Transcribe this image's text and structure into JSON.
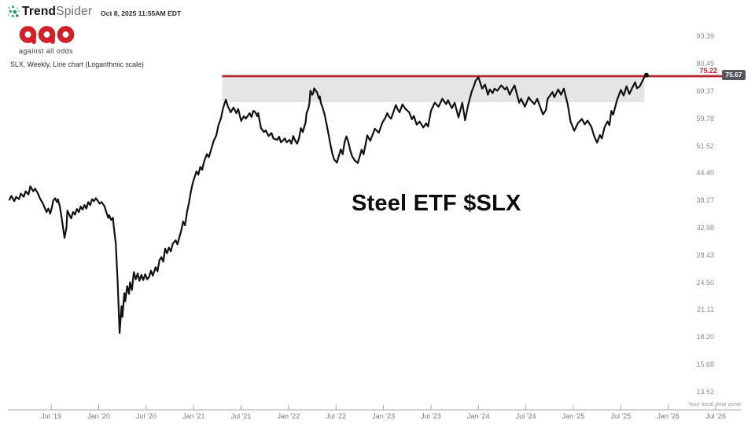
{
  "header": {
    "brand_bold": "Trend",
    "brand_light": "Spider",
    "timestamp": "Oct 8, 2025 11:55AM EDT"
  },
  "logo": {
    "text": "aao",
    "tagline": "against all odds",
    "color": "#d0202a"
  },
  "chart_meta": "SLX, Weekly, Line chart (Logarithmic scale)",
  "footer": {
    "timezone_note": "Your local time zone"
  },
  "colors": {
    "line": "#111111",
    "resistance": "#b5242b",
    "zone_fill": "#e6e5e5",
    "last_price_bg": "#55575c",
    "axis": "#aaaaaa",
    "x_label": "#7b7b7b",
    "y_label": "#8c8c8c",
    "brand_green_dark": "#1f8a60",
    "brand_green_mid": "#2f9e77",
    "brand_green_light": "#7fcfa8"
  },
  "chart_data": {
    "type": "line",
    "symbol": "SLX",
    "timeframe": "Weekly",
    "scale": "log",
    "title": "Steel ETF $SLX",
    "y_ticks": [
      93.39,
      80.49,
      69.37,
      59.78,
      51.52,
      44.4,
      38.27,
      32.98,
      28.43,
      24.5,
      21.11,
      18.2,
      15.68,
      13.52
    ],
    "x_ticks": [
      {
        "t": 2019.5,
        "label": "Jul '19"
      },
      {
        "t": 2020.0,
        "label": "Jan '20"
      },
      {
        "t": 2020.5,
        "label": "Jul '20"
      },
      {
        "t": 2021.0,
        "label": "Jan '21"
      },
      {
        "t": 2021.5,
        "label": "Jul '21"
      },
      {
        "t": 2022.0,
        "label": "Jan '22"
      },
      {
        "t": 2022.5,
        "label": "Jul '22"
      },
      {
        "t": 2023.0,
        "label": "Jan '23"
      },
      {
        "t": 2023.5,
        "label": "Jul '23"
      },
      {
        "t": 2024.0,
        "label": "Jan '24"
      },
      {
        "t": 2024.5,
        "label": "Jul '24"
      },
      {
        "t": 2025.0,
        "label": "Jan '25"
      },
      {
        "t": 2025.5,
        "label": "Jul '25"
      },
      {
        "t": 2026.0,
        "label": "Jan '26"
      },
      {
        "t": 2026.5,
        "label": "Jul '26"
      }
    ],
    "resistance": {
      "level": 75.22,
      "label": "75.22",
      "start": 2021.3
    },
    "last_price": {
      "value": 75.67,
      "label": "75.67"
    },
    "zone": {
      "start": 2021.3,
      "end": 2025.75,
      "top": 75.22,
      "bottom": 65.3
    },
    "series": [
      [
        2019.06,
        38.4
      ],
      [
        2019.08,
        39.2
      ],
      [
        2019.11,
        38.1
      ],
      [
        2019.13,
        39.0
      ],
      [
        2019.16,
        38.5
      ],
      [
        2019.18,
        39.7
      ],
      [
        2019.21,
        39.0
      ],
      [
        2019.23,
        40.2
      ],
      [
        2019.26,
        39.5
      ],
      [
        2019.28,
        41.3
      ],
      [
        2019.31,
        40.2
      ],
      [
        2019.33,
        40.8
      ],
      [
        2019.36,
        39.7
      ],
      [
        2019.38,
        38.7
      ],
      [
        2019.41,
        37.7
      ],
      [
        2019.43,
        36.8
      ],
      [
        2019.45,
        35.9
      ],
      [
        2019.47,
        36.6
      ],
      [
        2019.49,
        35.6
      ],
      [
        2019.51,
        37.1
      ],
      [
        2019.52,
        38.2
      ],
      [
        2019.54,
        38.7
      ],
      [
        2019.56,
        37.9
      ],
      [
        2019.57,
        38.5
      ],
      [
        2019.59,
        37.1
      ],
      [
        2019.61,
        34.8
      ],
      [
        2019.64,
        31.2
      ],
      [
        2019.66,
        33.0
      ],
      [
        2019.67,
        36.2
      ],
      [
        2019.69,
        35.4
      ],
      [
        2019.71,
        34.7
      ],
      [
        2019.73,
        35.9
      ],
      [
        2019.75,
        35.4
      ],
      [
        2019.77,
        36.5
      ],
      [
        2019.79,
        35.9
      ],
      [
        2019.81,
        37.0
      ],
      [
        2019.83,
        36.4
      ],
      [
        2019.85,
        37.3
      ],
      [
        2019.87,
        36.6
      ],
      [
        2019.89,
        37.9
      ],
      [
        2019.91,
        37.3
      ],
      [
        2019.93,
        38.5
      ],
      [
        2019.95,
        38.1
      ],
      [
        2019.97,
        38.7
      ],
      [
        2019.99,
        38.2
      ],
      [
        2020.01,
        37.6
      ],
      [
        2020.03,
        37.9
      ],
      [
        2020.06,
        37.1
      ],
      [
        2020.08,
        35.9
      ],
      [
        2020.1,
        34.8
      ],
      [
        2020.11,
        35.3
      ],
      [
        2020.13,
        34.4
      ],
      [
        2020.15,
        34.8
      ],
      [
        2020.16,
        33.0
      ],
      [
        2020.18,
        30.3
      ],
      [
        2020.2,
        24.5
      ],
      [
        2020.22,
        18.6
      ],
      [
        2020.24,
        21.5
      ],
      [
        2020.25,
        20.3
      ],
      [
        2020.27,
        23.1
      ],
      [
        2020.28,
        22.1
      ],
      [
        2020.3,
        24.0
      ],
      [
        2020.32,
        23.0
      ],
      [
        2020.33,
        24.5
      ],
      [
        2020.35,
        23.5
      ],
      [
        2020.37,
        25.9
      ],
      [
        2020.39,
        24.9
      ],
      [
        2020.41,
        25.7
      ],
      [
        2020.43,
        24.7
      ],
      [
        2020.45,
        25.5
      ],
      [
        2020.47,
        24.8
      ],
      [
        2020.49,
        25.6
      ],
      [
        2020.51,
        24.9
      ],
      [
        2020.53,
        25.2
      ],
      [
        2020.55,
        26.1
      ],
      [
        2020.57,
        25.4
      ],
      [
        2020.6,
        26.6
      ],
      [
        2020.62,
        26.0
      ],
      [
        2020.64,
        27.6
      ],
      [
        2020.66,
        28.1
      ],
      [
        2020.68,
        27.4
      ],
      [
        2020.7,
        29.4
      ],
      [
        2020.72,
        28.7
      ],
      [
        2020.74,
        29.6
      ],
      [
        2020.76,
        29.0
      ],
      [
        2020.78,
        30.2
      ],
      [
        2020.81,
        30.8
      ],
      [
        2020.83,
        30.1
      ],
      [
        2020.85,
        31.3
      ],
      [
        2020.87,
        32.5
      ],
      [
        2020.89,
        34.1
      ],
      [
        2020.91,
        33.4
      ],
      [
        2020.93,
        35.9
      ],
      [
        2020.95,
        37.7
      ],
      [
        2020.97,
        40.0
      ],
      [
        2020.99,
        42.0
      ],
      [
        2021.01,
        43.4
      ],
      [
        2021.03,
        44.8
      ],
      [
        2021.05,
        44.0
      ],
      [
        2021.07,
        45.9
      ],
      [
        2021.09,
        45.2
      ],
      [
        2021.11,
        47.3
      ],
      [
        2021.14,
        49.2
      ],
      [
        2021.16,
        48.4
      ],
      [
        2021.19,
        50.9
      ],
      [
        2021.21,
        52.8
      ],
      [
        2021.24,
        54.6
      ],
      [
        2021.26,
        57.5
      ],
      [
        2021.29,
        60.0
      ],
      [
        2021.31,
        63.2
      ],
      [
        2021.34,
        66.2
      ],
      [
        2021.36,
        63.9
      ],
      [
        2021.39,
        61.8
      ],
      [
        2021.42,
        63.4
      ],
      [
        2021.45,
        61.5
      ],
      [
        2021.47,
        62.9
      ],
      [
        2021.5,
        59.0
      ],
      [
        2021.53,
        60.5
      ],
      [
        2021.55,
        59.7
      ],
      [
        2021.59,
        61.5
      ],
      [
        2021.61,
        60.2
      ],
      [
        2021.63,
        62.3
      ],
      [
        2021.65,
        61.8
      ],
      [
        2021.67,
        60.5
      ],
      [
        2021.68,
        61.5
      ],
      [
        2021.71,
        56.7
      ],
      [
        2021.74,
        55.5
      ],
      [
        2021.76,
        56.0
      ],
      [
        2021.79,
        54.3
      ],
      [
        2021.82,
        55.2
      ],
      [
        2021.84,
        53.6
      ],
      [
        2021.88,
        53.2
      ],
      [
        2021.9,
        54.1
      ],
      [
        2021.92,
        52.5
      ],
      [
        2021.94,
        53.0
      ],
      [
        2021.96,
        53.6
      ],
      [
        2021.98,
        52.5
      ],
      [
        2022.01,
        53.2
      ],
      [
        2022.03,
        52.1
      ],
      [
        2022.05,
        54.3
      ],
      [
        2022.07,
        53.0
      ],
      [
        2022.09,
        52.1
      ],
      [
        2022.11,
        53.6
      ],
      [
        2022.13,
        56.7
      ],
      [
        2022.15,
        55.5
      ],
      [
        2022.18,
        58.5
      ],
      [
        2022.19,
        61.5
      ],
      [
        2022.21,
        63.2
      ],
      [
        2022.22,
        65.1
      ],
      [
        2022.23,
        69.5
      ],
      [
        2022.25,
        68.0
      ],
      [
        2022.26,
        68.6
      ],
      [
        2022.27,
        70.4
      ],
      [
        2022.3,
        68.9
      ],
      [
        2022.32,
        66.6
      ],
      [
        2022.33,
        67.4
      ],
      [
        2022.34,
        65.1
      ],
      [
        2022.36,
        63.2
      ],
      [
        2022.38,
        61.0
      ],
      [
        2022.4,
        58.0
      ],
      [
        2022.42,
        55.0
      ],
      [
        2022.44,
        52.0
      ],
      [
        2022.46,
        49.5
      ],
      [
        2022.48,
        47.8
      ],
      [
        2022.51,
        47.0
      ],
      [
        2022.53,
        48.8
      ],
      [
        2022.55,
        50.5
      ],
      [
        2022.57,
        49.2
      ],
      [
        2022.59,
        52.4
      ],
      [
        2022.61,
        54.2
      ],
      [
        2022.63,
        52.6
      ],
      [
        2022.65,
        50.2
      ],
      [
        2022.67,
        48.6
      ],
      [
        2022.7,
        47.5
      ],
      [
        2022.73,
        46.9
      ],
      [
        2022.77,
        50.4
      ],
      [
        2022.79,
        49.2
      ],
      [
        2022.83,
        54.5
      ],
      [
        2022.86,
        52.9
      ],
      [
        2022.91,
        56.5
      ],
      [
        2022.95,
        55.3
      ],
      [
        2022.99,
        58.5
      ],
      [
        2023.02,
        60.0
      ],
      [
        2023.04,
        61.5
      ],
      [
        2023.06,
        60.3
      ],
      [
        2023.08,
        59.7
      ],
      [
        2023.11,
        62.4
      ],
      [
        2023.13,
        64.3
      ],
      [
        2023.15,
        62.8
      ],
      [
        2023.17,
        61.8
      ],
      [
        2023.2,
        64.5
      ],
      [
        2023.23,
        63.0
      ],
      [
        2023.27,
        61.8
      ],
      [
        2023.3,
        59.5
      ],
      [
        2023.32,
        60.6
      ],
      [
        2023.35,
        57.8
      ],
      [
        2023.38,
        58.8
      ],
      [
        2023.42,
        56.9
      ],
      [
        2023.45,
        58.2
      ],
      [
        2023.47,
        57.2
      ],
      [
        2023.5,
        62.3
      ],
      [
        2023.54,
        65.1
      ],
      [
        2023.58,
        63.7
      ],
      [
        2023.62,
        66.5
      ],
      [
        2023.66,
        64.6
      ],
      [
        2023.68,
        66.0
      ],
      [
        2023.72,
        63.2
      ],
      [
        2023.75,
        65.1
      ],
      [
        2023.79,
        60.1
      ],
      [
        2023.83,
        65.1
      ],
      [
        2023.86,
        59.2
      ],
      [
        2023.89,
        64.0
      ],
      [
        2023.93,
        69.3
      ],
      [
        2023.95,
        71.0
      ],
      [
        2023.97,
        73.4
      ],
      [
        2024.0,
        74.8
      ],
      [
        2024.04,
        70.3
      ],
      [
        2024.07,
        71.9
      ],
      [
        2024.1,
        68.0
      ],
      [
        2024.12,
        70.0
      ],
      [
        2024.15,
        68.6
      ],
      [
        2024.17,
        70.3
      ],
      [
        2024.2,
        69.5
      ],
      [
        2024.24,
        71.6
      ],
      [
        2024.28,
        70.0
      ],
      [
        2024.3,
        70.9
      ],
      [
        2024.33,
        68.0
      ],
      [
        2024.36,
        70.3
      ],
      [
        2024.38,
        71.6
      ],
      [
        2024.43,
        65.1
      ],
      [
        2024.45,
        66.5
      ],
      [
        2024.49,
        63.7
      ],
      [
        2024.53,
        67.1
      ],
      [
        2024.55,
        66.0
      ],
      [
        2024.59,
        64.6
      ],
      [
        2024.62,
        66.5
      ],
      [
        2024.68,
        61.1
      ],
      [
        2024.71,
        62.5
      ],
      [
        2024.73,
        66.5
      ],
      [
        2024.78,
        69.0
      ],
      [
        2024.8,
        67.1
      ],
      [
        2024.84,
        70.0
      ],
      [
        2024.87,
        68.0
      ],
      [
        2024.9,
        70.3
      ],
      [
        2024.94,
        64.6
      ],
      [
        2024.97,
        58.8
      ],
      [
        2025.01,
        55.9
      ],
      [
        2025.05,
        58.3
      ],
      [
        2025.09,
        59.6
      ],
      [
        2025.12,
        57.9
      ],
      [
        2025.15,
        59.1
      ],
      [
        2025.19,
        57.1
      ],
      [
        2025.22,
        54.2
      ],
      [
        2025.25,
        52.4
      ],
      [
        2025.28,
        54.6
      ],
      [
        2025.3,
        53.6
      ],
      [
        2025.33,
        57.0
      ],
      [
        2025.36,
        58.8
      ],
      [
        2025.38,
        57.6
      ],
      [
        2025.4,
        62.3
      ],
      [
        2025.42,
        61.0
      ],
      [
        2025.46,
        66.0
      ],
      [
        2025.5,
        69.8
      ],
      [
        2025.53,
        67.7
      ],
      [
        2025.56,
        71.2
      ],
      [
        2025.59,
        68.3
      ],
      [
        2025.61,
        69.8
      ],
      [
        2025.65,
        72.8
      ],
      [
        2025.67,
        70.4
      ],
      [
        2025.7,
        71.2
      ],
      [
        2025.73,
        73.4
      ],
      [
        2025.75,
        75.0
      ],
      [
        2025.77,
        75.67
      ]
    ]
  }
}
